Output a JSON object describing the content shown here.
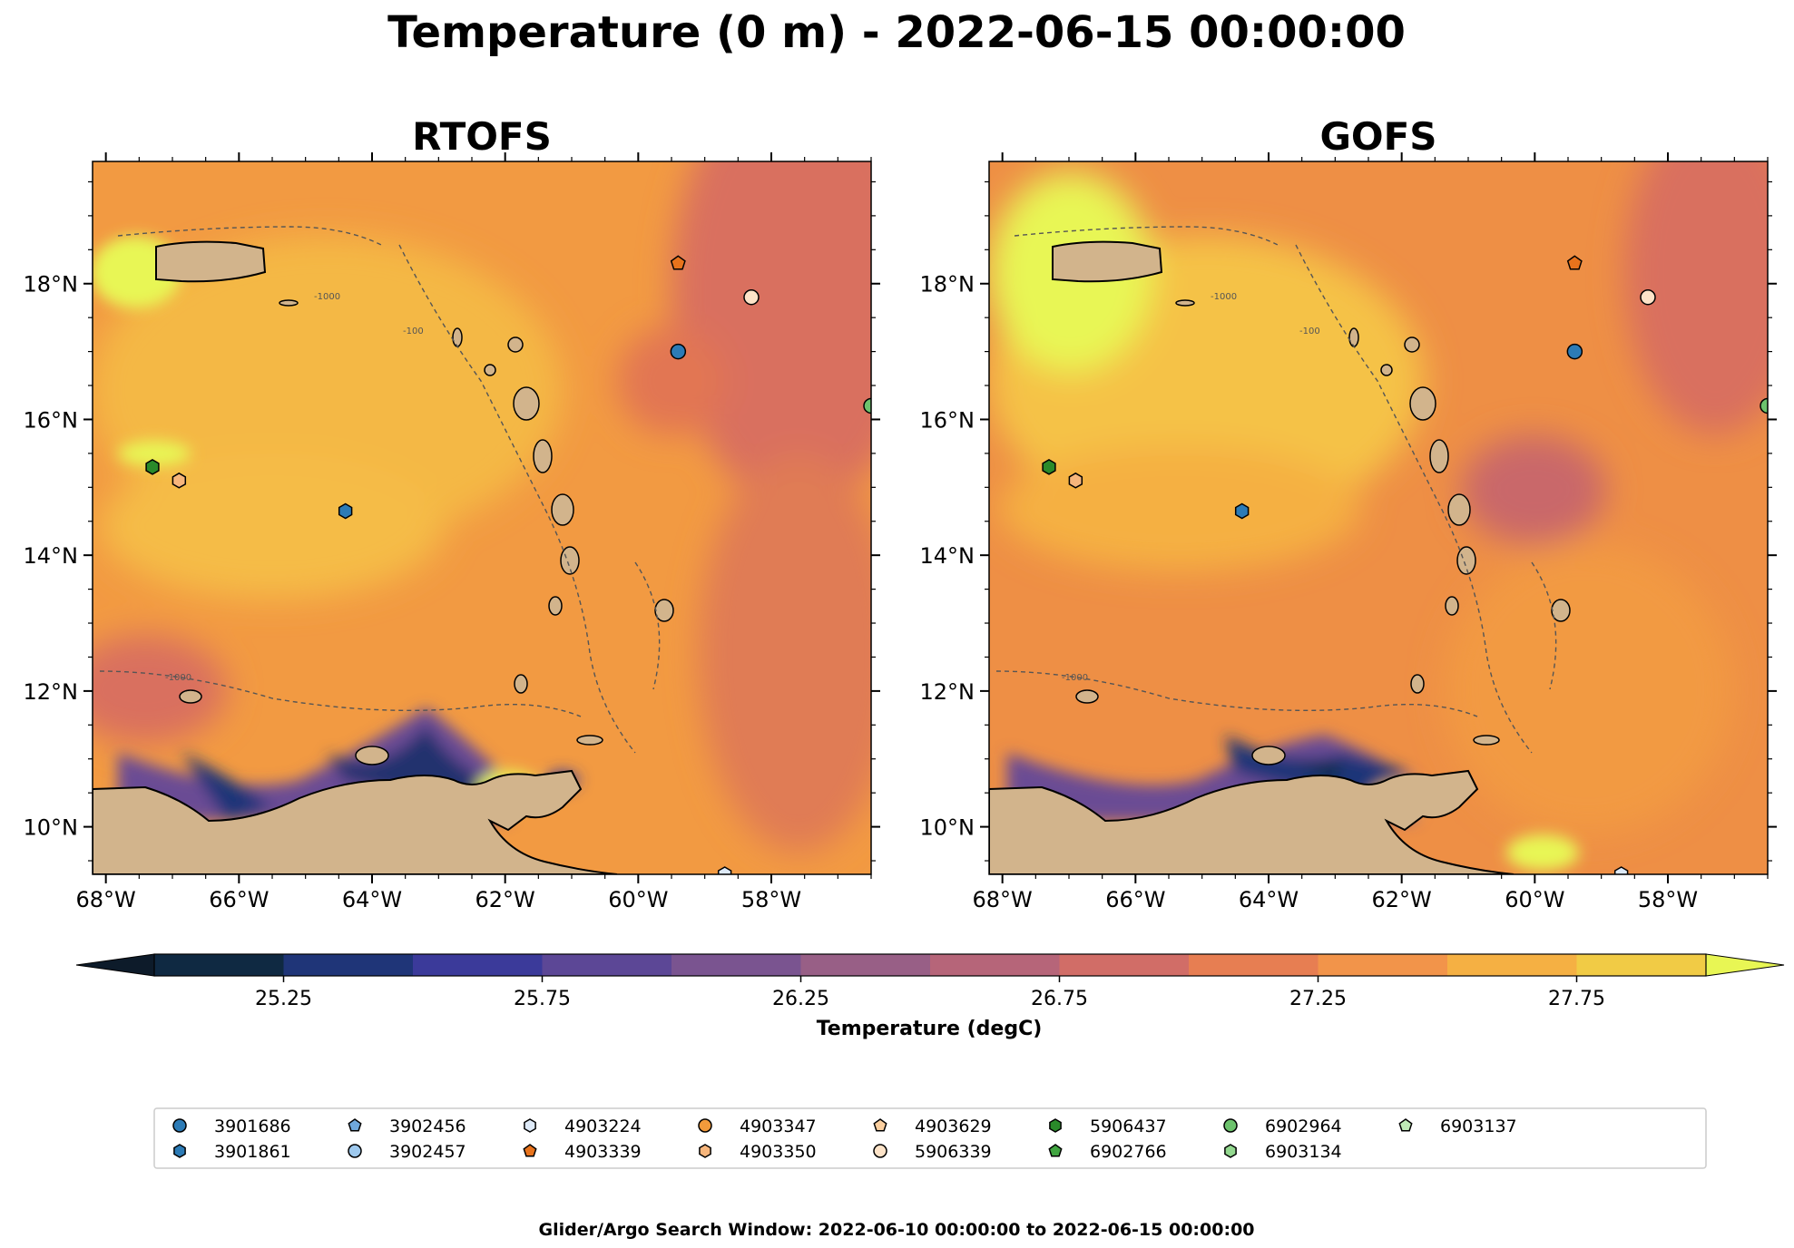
{
  "figure": {
    "suptitle": "Temperature (0 m) - 2022-06-15 00:00:00",
    "footer": "Glider/Argo Search Window: 2022-06-10 00:00:00 to 2022-06-15 00:00:00"
  },
  "chart_data": [
    {
      "type": "heatmap",
      "title": "RTOFS",
      "variable": "Temperature",
      "units": "degC",
      "xlim": [
        -68.2,
        -56.5
      ],
      "ylim": [
        9.3,
        19.8
      ],
      "xtick_labels": [
        "68°W",
        "66°W",
        "64°W",
        "62°W",
        "60°W",
        "58°W"
      ],
      "ytick_labels": [
        "10°N",
        "12°N",
        "14°N",
        "16°N",
        "18°N"
      ],
      "bathymetry_contour_labels": [
        "-1000",
        "-100"
      ],
      "land_color": "#d2b48c",
      "river_color": "#a6cbe3"
    },
    {
      "type": "heatmap",
      "title": "GOFS",
      "variable": "Temperature",
      "units": "degC",
      "xlim": [
        -68.2,
        -56.5
      ],
      "ylim": [
        9.3,
        19.8
      ],
      "xtick_labels": [
        "68°W",
        "66°W",
        "64°W",
        "62°W",
        "60°W",
        "58°W"
      ],
      "ytick_labels": [
        "10°N",
        "12°N",
        "14°N",
        "16°N",
        "18°N"
      ],
      "bathymetry_contour_labels": [
        "-1000",
        "-100"
      ],
      "land_color": "#d2b48c",
      "river_color": "#a6cbe3"
    }
  ],
  "colorbar": {
    "label": "Temperature (degC)",
    "levels": [
      25.0,
      25.25,
      25.5,
      25.75,
      26.0,
      26.25,
      26.5,
      26.75,
      27.0,
      27.25,
      27.5,
      27.75,
      28.0
    ],
    "tick_values": [
      25.25,
      25.75,
      26.25,
      26.75,
      27.25,
      27.75
    ],
    "tick_labels": [
      "25.25",
      "25.75",
      "26.25",
      "26.75",
      "27.25",
      "27.75"
    ],
    "extend": "both",
    "under_color": "#0d1b2a",
    "over_color": "#e8f654",
    "colors": [
      "#0f2942",
      "#1f3578",
      "#3b3a9a",
      "#5c4796",
      "#7a5490",
      "#985f86",
      "#b66579",
      "#d16d67",
      "#e77e52",
      "#f2944a",
      "#f5b043",
      "#f1cb45"
    ]
  },
  "platforms": {
    "legend": [
      {
        "id": "3901686",
        "marker": "circle",
        "color": "#2c7bb6"
      },
      {
        "id": "3901861",
        "marker": "hexagon",
        "color": "#2c7bb6"
      },
      {
        "id": "3902456",
        "marker": "pentagon",
        "color": "#6fa8dc"
      },
      {
        "id": "3902457",
        "marker": "circle",
        "color": "#9ec9ee"
      },
      {
        "id": "4903224",
        "marker": "hexagon",
        "color": "#deeaf8"
      },
      {
        "id": "4903339",
        "marker": "pentagon",
        "color": "#e8731c"
      },
      {
        "id": "4903347",
        "marker": "circle",
        "color": "#f39a3b"
      },
      {
        "id": "4903350",
        "marker": "hexagon",
        "color": "#f7b67c"
      },
      {
        "id": "4903629",
        "marker": "pentagon",
        "color": "#fbcf9f"
      },
      {
        "id": "5906339",
        "marker": "circle",
        "color": "#fde3c8"
      },
      {
        "id": "5906437",
        "marker": "hexagon",
        "color": "#2a8a2a"
      },
      {
        "id": "6902766",
        "marker": "pentagon",
        "color": "#41a541"
      },
      {
        "id": "6902964",
        "marker": "circle",
        "color": "#6dc36d"
      },
      {
        "id": "6903134",
        "marker": "hexagon",
        "color": "#93d88f"
      },
      {
        "id": "6903137",
        "marker": "pentagon",
        "color": "#bfeab6"
      }
    ],
    "positions": [
      {
        "id": "3901686",
        "lon": -59.4,
        "lat": 17.0
      },
      {
        "id": "3901861",
        "lon": -64.4,
        "lat": 14.65
      },
      {
        "id": "4903339",
        "lon": -59.4,
        "lat": 18.3
      },
      {
        "id": "5906339",
        "lon": -58.3,
        "lat": 17.8
      },
      {
        "id": "5906437",
        "lon": -67.3,
        "lat": 15.3
      },
      {
        "id": "4903350",
        "lon": -66.9,
        "lat": 15.1
      },
      {
        "id": "6902964",
        "lon": -56.5,
        "lat": 16.2
      },
      {
        "id": "4903224",
        "lon": -58.7,
        "lat": 9.3
      }
    ]
  }
}
